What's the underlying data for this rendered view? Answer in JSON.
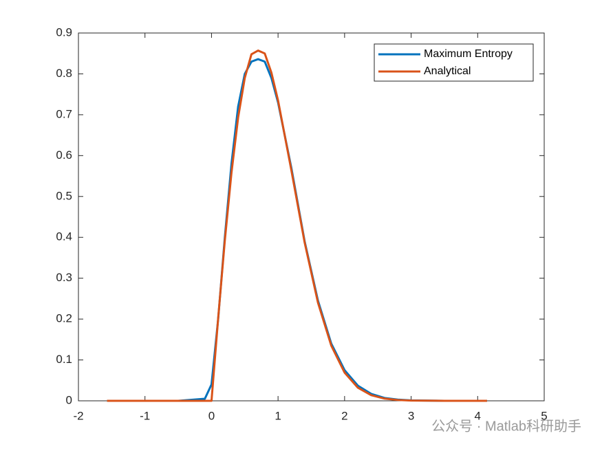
{
  "chart_data": {
    "type": "line",
    "x": [
      -1.57,
      -1,
      -0.5,
      -0.1,
      0,
      0.1,
      0.2,
      0.3,
      0.4,
      0.5,
      0.6,
      0.7,
      0.8,
      0.9,
      1.0,
      1.2,
      1.4,
      1.6,
      1.8,
      2.0,
      2.2,
      2.4,
      2.6,
      2.8,
      3.0,
      3.5,
      4.14
    ],
    "series": [
      {
        "name": "Maximum Entropy",
        "color": "#0072bd",
        "values": [
          0,
          0,
          0,
          0.005,
          0.04,
          0.2,
          0.4,
          0.58,
          0.72,
          0.8,
          0.83,
          0.836,
          0.83,
          0.79,
          0.73,
          0.57,
          0.39,
          0.245,
          0.14,
          0.075,
          0.037,
          0.017,
          0.007,
          0.003,
          0.001,
          0,
          0
        ]
      },
      {
        "name": "Analytical",
        "color": "#d95319",
        "values": [
          0,
          0,
          0,
          0,
          0,
          0.202,
          0.392,
          0.558,
          0.693,
          0.79,
          0.848,
          0.857,
          0.85,
          0.803,
          0.735,
          0.564,
          0.387,
          0.24,
          0.135,
          0.069,
          0.032,
          0.0137,
          0.0054,
          0.002,
          0.0006,
          0,
          0
        ]
      }
    ],
    "xlim": [
      -2,
      5
    ],
    "xticks": [
      -2,
      -1,
      0,
      1,
      2,
      3,
      4,
      5
    ],
    "ylim": [
      0,
      0.9
    ],
    "yticks": [
      0,
      0.1,
      0.2,
      0.3,
      0.4,
      0.5,
      0.6,
      0.7,
      0.8,
      0.9
    ],
    "legend": "top-right",
    "watermark": "公众号 · Matlab科研助手"
  }
}
